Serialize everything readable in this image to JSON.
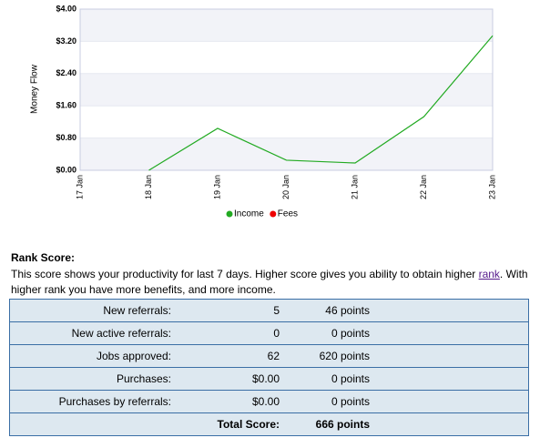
{
  "chart_data": {
    "type": "line",
    "y_label": "Money Flow",
    "categories": [
      "17 Jan",
      "18 Jan",
      "19 Jan",
      "20 Jan",
      "21 Jan",
      "22 Jan",
      "23 Jan"
    ],
    "series": [
      {
        "name": "Income",
        "color": "#22aa22",
        "values": [
          null,
          0,
          1.04,
          0.25,
          0.18,
          1.33,
          3.34
        ]
      },
      {
        "name": "Fees",
        "color": "#ee0000",
        "values": [
          null,
          null,
          null,
          null,
          null,
          null,
          null
        ]
      }
    ],
    "ylim": [
      0,
      4
    ],
    "yticks": [
      {
        "value": 0,
        "label": "$0.00"
      },
      {
        "value": 0.8,
        "label": "$0.80"
      },
      {
        "value": 1.6,
        "label": "$1.60"
      },
      {
        "value": 2.4,
        "label": "$2.40"
      },
      {
        "value": 3.2,
        "label": "$3.20"
      },
      {
        "value": 4,
        "label": "$4.00"
      }
    ],
    "grid": true,
    "legend": "bottom"
  },
  "rank": {
    "title": "Rank Score:",
    "text_before": "This score shows your productivity for last 7 days. Higher score gives you ability to obtain higher ",
    "link": "rank",
    "text_after": ". With higher rank you have more benefits, and more income."
  },
  "table": {
    "rows": [
      {
        "label": "New referrals:",
        "value": "5",
        "points": "46 points"
      },
      {
        "label": "New active referrals:",
        "value": "0",
        "points": "0 points"
      },
      {
        "label": "Jobs approved:",
        "value": "62",
        "points": "620 points"
      },
      {
        "label": "Purchases:",
        "value": "$0.00",
        "points": "0 points"
      },
      {
        "label": "Purchases by referrals:",
        "value": "$0.00",
        "points": "0 points"
      }
    ],
    "total": {
      "label": "Total Score:",
      "points": "666 points"
    }
  }
}
